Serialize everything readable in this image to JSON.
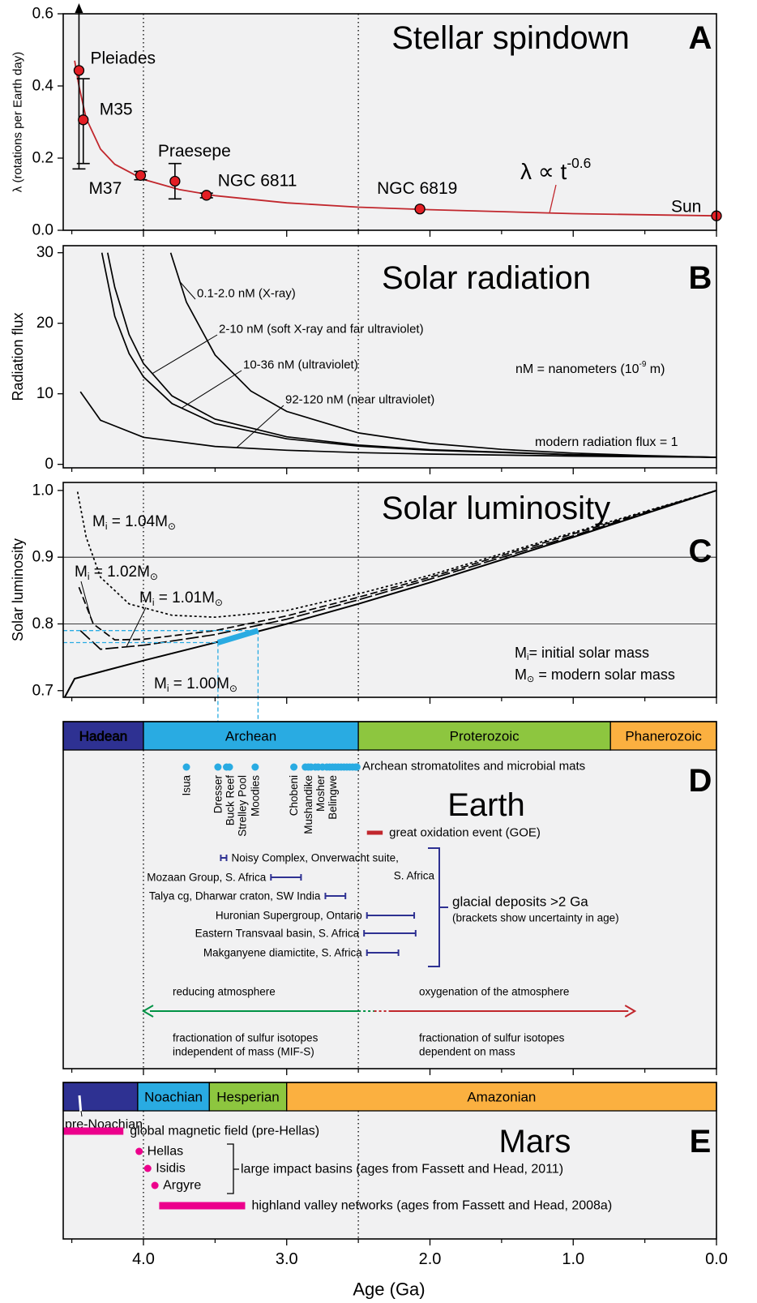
{
  "x_axis": {
    "label": "Age (Ga)",
    "xlim": [
      4.56,
      0
    ],
    "xticks": [
      {
        "value": 4,
        "label": "4.0"
      },
      {
        "value": 3,
        "label": "3.0"
      },
      {
        "value": 2,
        "label": "2.0"
      },
      {
        "value": 1,
        "label": "1.0"
      },
      {
        "value": 0,
        "label": "0.0"
      }
    ],
    "xminorticks": [
      4.5,
      3.5,
      2.5,
      1.5,
      0.5
    ],
    "reference_lines": [
      4.0,
      2.5
    ]
  },
  "chart_data": [
    {
      "type": "scatter",
      "title": "Stellar spindown",
      "panel": "A",
      "ylabel": "λ (rotations per Earth day)",
      "ylim": [
        0,
        0.6
      ],
      "yticks": [
        {
          "value": 0,
          "label": "0.0"
        },
        {
          "value": 0.2,
          "label": "0.2"
        },
        {
          "value": 0.4,
          "label": "0.4"
        },
        {
          "value": 0.6,
          "label": "0.6"
        }
      ],
      "point_color": "#e31e24",
      "names": [
        "Pleiades",
        "M35",
        "M37",
        "Praesepe",
        "NGC 6811",
        "NGC 6819",
        "Sun"
      ],
      "x": [
        4.45,
        4.42,
        4.02,
        3.78,
        3.56,
        2.07,
        0
      ],
      "values": [
        0.443,
        0.306,
        0.152,
        0.136,
        0.097,
        0.059,
        0.04
      ],
      "err_low": [
        0.17,
        0.185,
        0.14,
        0.087,
        0.09,
        null,
        null
      ],
      "err_high": [
        0.6,
        0.42,
        0.163,
        0.185,
        0.103,
        null,
        null
      ],
      "open_upper": [
        true,
        false,
        false,
        false,
        false,
        false,
        false
      ],
      "fit": {
        "label": [
          "λ ∝ t",
          "-0.6"
        ],
        "color": "#c1272d",
        "x": [
          4.48,
          4.45,
          4.4,
          4.3,
          4.2,
          4.0,
          3.75,
          3.5,
          3.0,
          2.5,
          2.0,
          1.0,
          0
        ],
        "values": [
          0.47,
          0.4,
          0.31,
          0.225,
          0.183,
          0.141,
          0.113,
          0.096,
          0.076,
          0.064,
          0.057,
          0.046,
          0.04
        ]
      }
    },
    {
      "type": "line",
      "title": "Solar radiation",
      "panel": "B",
      "ylabel": "Radiation flux",
      "ylim": [
        -0.5,
        31
      ],
      "yticks": [
        0,
        10,
        20,
        30
      ],
      "series": [
        {
          "name": "0.1-2.0 nM (X-ray)",
          "color": "#000000",
          "x": [
            3.81,
            3.7,
            3.5,
            3.25,
            3.0,
            2.5,
            2.0,
            1.5,
            1.0,
            0.5,
            0
          ],
          "values": [
            30,
            23,
            15.5,
            10.4,
            7.5,
            4.45,
            2.96,
            2.12,
            1.59,
            1.24,
            1
          ]
        },
        {
          "name": "2-10 nM (soft X-ray and far ultraviolet)",
          "color": "#000000",
          "x": [
            4.25,
            4.2,
            4.1,
            4.0,
            3.8,
            3.5,
            3.0,
            2.5,
            2.0,
            1.0,
            0
          ],
          "values": [
            30,
            25.1,
            18.4,
            14.3,
            9.7,
            6.4,
            3.9,
            2.74,
            2.08,
            1.37,
            1
          ]
        },
        {
          "name": "10-36 nM (ultraviolet)",
          "color": "#000000",
          "x": [
            4.29,
            4.2,
            4.1,
            4.0,
            3.8,
            3.5,
            3.0,
            2.5,
            2.0,
            1.0,
            0
          ],
          "values": [
            30,
            21,
            15.7,
            12.4,
            8.6,
            5.76,
            3.62,
            2.59,
            2.0,
            1.35,
            1
          ]
        },
        {
          "name": "92-120 nM (near ultraviolet)",
          "color": "#000000",
          "x": [
            4.44,
            4.3,
            4.0,
            3.5,
            3.0,
            2.5,
            2.0,
            1.0,
            0
          ],
          "values": [
            10.3,
            6.25,
            3.83,
            2.54,
            1.99,
            1.66,
            1.45,
            1.17,
            1
          ]
        }
      ],
      "notes": [
        [
          "nM  = nanometers (10",
          "-9",
          " m)"
        ],
        [
          "modern radiation flux = 1"
        ]
      ]
    },
    {
      "type": "line",
      "title": "Solar luminosity",
      "panel": "C",
      "ylabel": "Solar luminosity",
      "ylim": [
        0.69,
        1.012
      ],
      "yticks": [
        0.7,
        0.8,
        0.9,
        {
          "value": 1,
          "label": "1.0"
        }
      ],
      "hlines": [
        0.8,
        0.9
      ],
      "series": [
        {
          "name": [
            "M",
            "i",
            " = 1.04M",
            "⊙"
          ],
          "color": "#000000",
          "dash": "3,3",
          "x": [
            4.46,
            4.4,
            4.3,
            4.1,
            3.8,
            3.5,
            3.0,
            2.5,
            2.0,
            1.0,
            0
          ],
          "values": [
            0.998,
            0.93,
            0.87,
            0.83,
            0.813,
            0.81,
            0.82,
            0.845,
            0.873,
            0.937,
            1.0
          ]
        },
        {
          "name": [
            "M",
            "i",
            " = 1.02M",
            "⊙"
          ],
          "color": "#000000",
          "dash": "9,4",
          "x": [
            4.45,
            4.35,
            4.2,
            4.0,
            3.5,
            3.0,
            2.5,
            2.0,
            1.0,
            0
          ],
          "values": [
            0.855,
            0.8,
            0.776,
            0.777,
            0.79,
            0.812,
            0.84,
            0.87,
            0.935,
            1.0
          ]
        },
        {
          "name": [
            "M",
            "i",
            " = 1.01M",
            "⊙"
          ],
          "color": "#000000",
          "dash": "16,4",
          "x": [
            4.44,
            4.3,
            4.0,
            3.5,
            3.0,
            2.5,
            2.0,
            1.0,
            0
          ],
          "values": [
            0.79,
            0.762,
            0.768,
            0.784,
            0.807,
            0.836,
            0.867,
            0.932,
            1.0
          ]
        },
        {
          "name": [
            "M",
            "i",
            " = 1.00M",
            "⊙"
          ],
          "color": "#000000",
          "dash": "none",
          "x": [
            4.55,
            4.48,
            4.0,
            3.5,
            3.0,
            2.5,
            2.0,
            1.0,
            0
          ],
          "values": [
            0.69,
            0.718,
            0.745,
            0.772,
            0.8,
            0.83,
            0.862,
            0.93,
            1.0
          ]
        }
      ],
      "highlight": {
        "color": "#29abe2",
        "x": [
          3.48,
          3.2
        ],
        "values": [
          0.772,
          0.79
        ]
      },
      "notes": [
        [
          "M",
          "i",
          "= initial solar mass"
        ],
        [
          "M",
          "⊙",
          " = modern solar mass"
        ]
      ]
    },
    {
      "type": "timeline",
      "title": "Earth",
      "panel": "D",
      "eons": [
        {
          "name": "Hadean",
          "start": 4.56,
          "end": 4.0,
          "color": "#2e3192"
        },
        {
          "name": "Archean",
          "start": 4.0,
          "end": 2.5,
          "color": "#29abe2"
        },
        {
          "name": "Proterozoic",
          "start": 2.5,
          "end": 0.74,
          "color": "#8dc63f"
        },
        {
          "name": "Phanerozoic",
          "start": 0.74,
          "end": 0,
          "color": "#fbb040"
        }
      ],
      "stromatolites": {
        "label": "Archean stromatolites and microbial mats",
        "color": "#29abe2",
        "sites": [
          {
            "name": "Isua",
            "age": 3.7
          },
          {
            "name": "Dresser",
            "age": 3.48
          },
          {
            "name": "Buck Reef",
            "age": 3.42
          },
          {
            "name": "Strelley Pool",
            "age": 3.4
          },
          {
            "name": "Moodies",
            "age": 3.22
          },
          {
            "name": "Chobeni",
            "age": 2.95
          },
          {
            "name": "Mushandike",
            "age": 2.85
          },
          {
            "name": "Mosher",
            "age": 2.8
          },
          {
            "name": "Belingwe",
            "age": 2.75
          }
        ],
        "ages": [
          2.87,
          2.83,
          2.78,
          2.72,
          2.7,
          2.68,
          2.66,
          2.64,
          2.62,
          2.6,
          2.58,
          2.56,
          2.54,
          2.52,
          2.51
        ]
      },
      "events": [
        {
          "name": "great oxidation event (GOE)",
          "start": 2.44,
          "end": 2.33,
          "color": "#c1272d"
        }
      ],
      "deposits": {
        "label": "glacial deposits >2 Ga",
        "note": "(brackets show uncertainty in age)",
        "color": "#2e3192",
        "items": [
          {
            "name": "Noisy Complex, Onverwacht suite,",
            "name2": "S. Africa",
            "start": 3.46,
            "end": 3.42
          },
          {
            "name": "Mozaan Group, S. Africa",
            "start": 3.11,
            "end": 2.9
          },
          {
            "name": "Talya cg, Dharwar craton, SW India",
            "start": 2.73,
            "end": 2.59
          },
          {
            "name": "Huronian Supergroup, Ontario",
            "start": 2.44,
            "end": 2.11
          },
          {
            "name": "Eastern Transvaal basin, S. Africa",
            "start": 2.46,
            "end": 2.1
          },
          {
            "name": "Makganyene diamictite, S. Africa",
            "start": 2.44,
            "end": 2.22
          }
        ]
      },
      "atmosphere": [
        {
          "label": "reducing atmosphere",
          "notes": [
            "fractionation of sulfur isotopes",
            "independent of mass (MIF-S)"
          ],
          "start": 2.5,
          "end": 4.0,
          "color": "#009245"
        },
        {
          "label": "oxygenation of the atmosphere",
          "notes": [
            "fractionation of sulfur isotopes",
            "dependent on mass"
          ],
          "start": 2.28,
          "end": 0.57,
          "color": "#c1272d"
        }
      ]
    },
    {
      "type": "timeline",
      "title": "Mars",
      "panel": "E",
      "eons": [
        {
          "name": "pre-Noachian",
          "start": 4.56,
          "end": 4.04,
          "color": "#2e3192",
          "label_outside": true
        },
        {
          "name": "Noachian",
          "start": 4.04,
          "end": 3.54,
          "color": "#29abe2"
        },
        {
          "name": "Hesperian",
          "start": 3.54,
          "end": 3.0,
          "color": "#8dc63f"
        },
        {
          "name": "Amazonian",
          "start": 3.0,
          "end": 0,
          "color": "#fbb040"
        }
      ],
      "events": [
        {
          "name": "global magnetic field (pre-Hellas)",
          "start": 4.56,
          "end": 4.14,
          "color": "#ec008c"
        },
        {
          "name": "highland valley networks (ages from Fassett and Head, 2008a)",
          "start": 3.89,
          "end": 3.29,
          "color": "#ec008c"
        }
      ],
      "basins": {
        "label": "large impact basins (ages from Fassett and Head, 2011)",
        "color": "#ec008c",
        "items": [
          {
            "name": "Hellas",
            "age": 4.03
          },
          {
            "name": "Isidis",
            "age": 3.97
          },
          {
            "name": "Argyre",
            "age": 3.92
          }
        ]
      }
    }
  ]
}
